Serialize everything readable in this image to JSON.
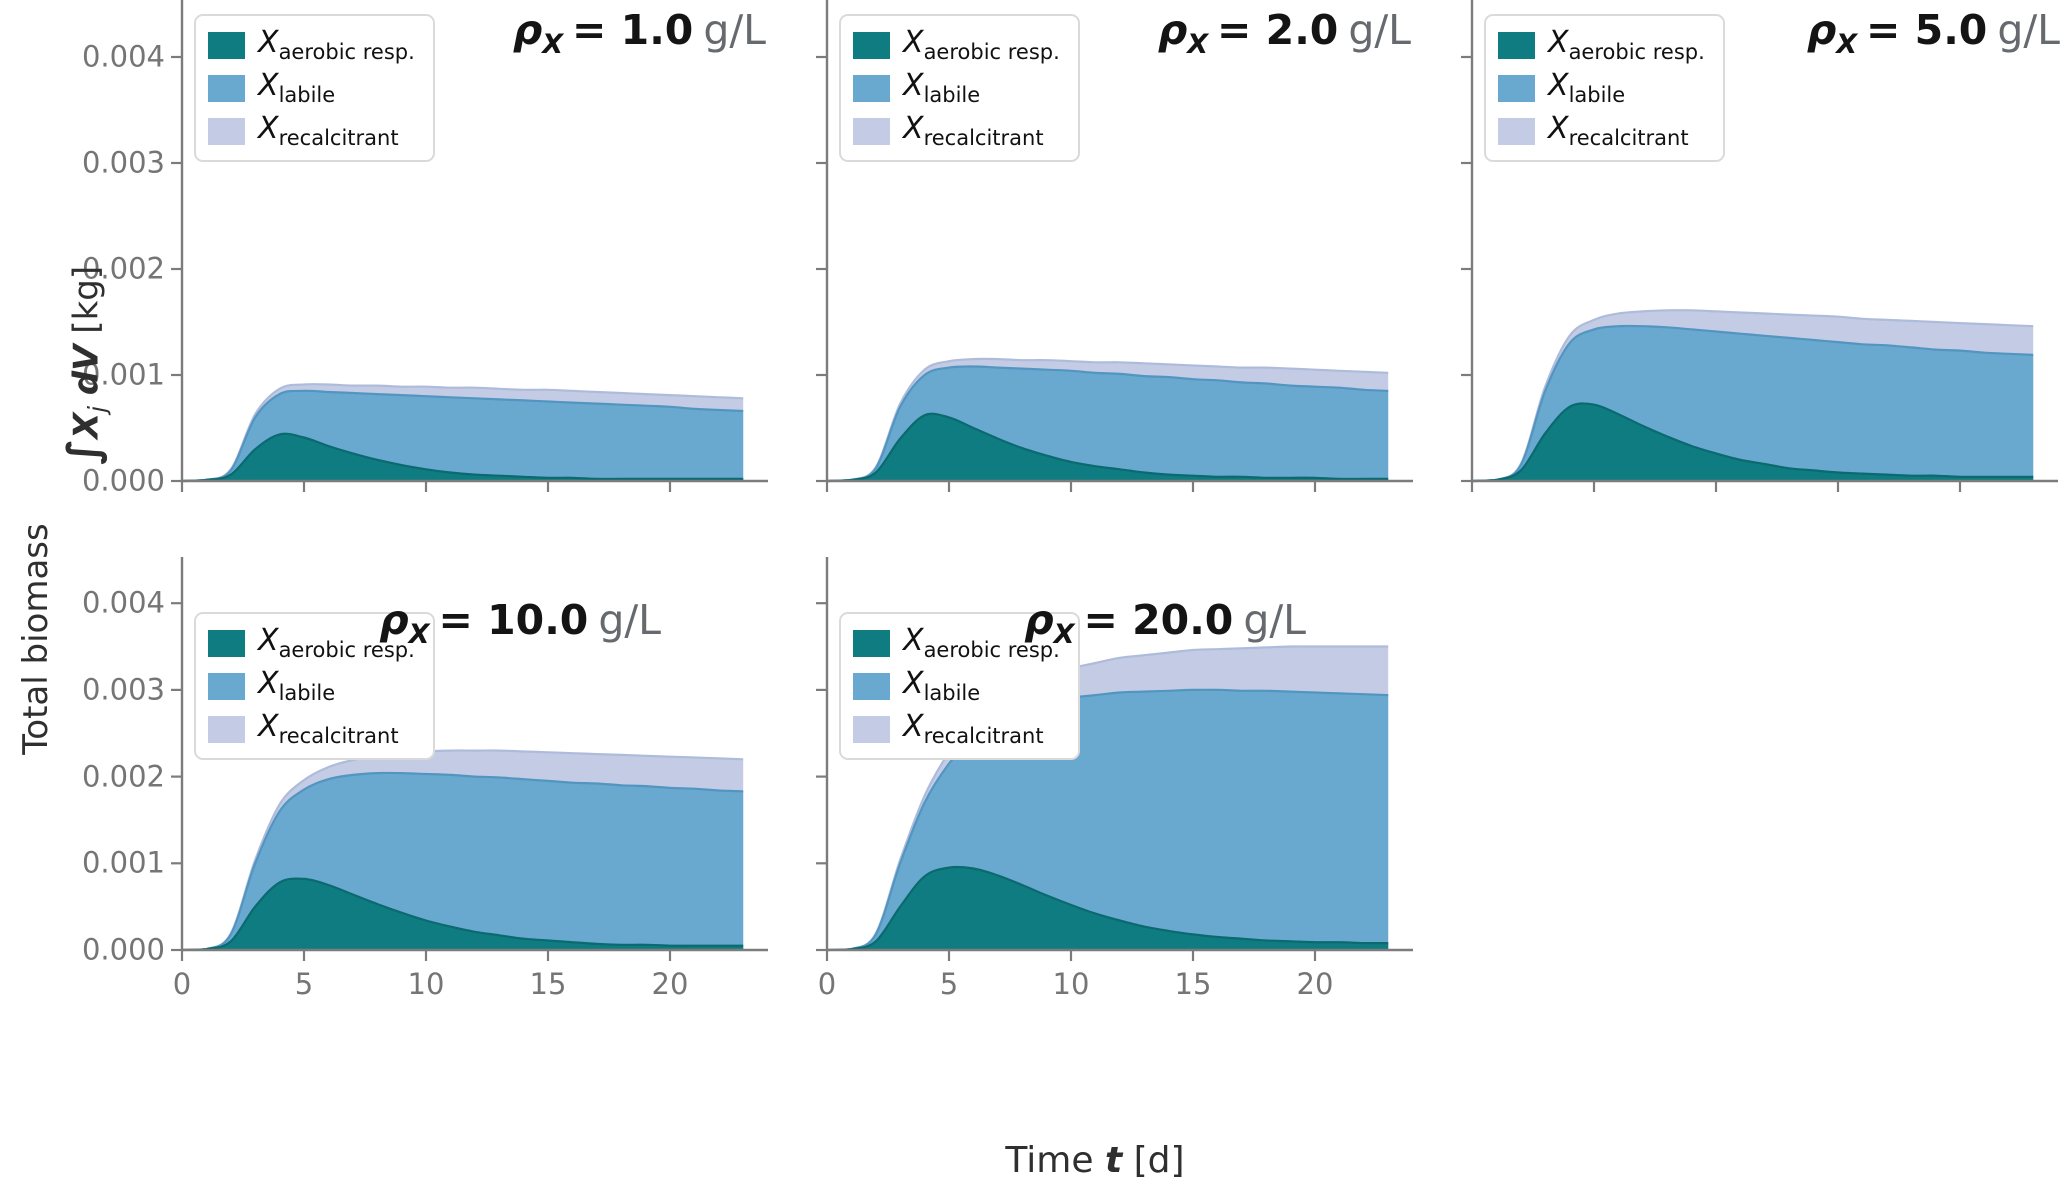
{
  "figure": {
    "xlabel": {
      "pre": "Time",
      "var": "t",
      "post": "[d]"
    },
    "ylabel": {
      "line1": "Total biomass",
      "line2_integral": "∫",
      "line2_var": "X",
      "line2_sub": "j",
      "line2_dv": "dV",
      "line2_unit": "[kg]"
    }
  },
  "colors": {
    "aerobic_fill": "#0e7c80",
    "aerobic_edge": "#0a6a70",
    "labile_fill": "#69a9d0",
    "labile_edge": "#5295c0",
    "recalcitrant_fill": "#c3cce4",
    "recalcitrant_edge": "#aebbdb",
    "axis": "#7c7c7c",
    "tick_label": "#757575"
  },
  "legend": {
    "items": [
      {
        "symbol": "X",
        "subscript": "aerobic resp."
      },
      {
        "symbol": "X",
        "subscript": "labile"
      },
      {
        "symbol": "X",
        "subscript": "recalcitrant"
      }
    ]
  },
  "axes": {
    "y_tick_labels": [
      "0.000",
      "0.001",
      "0.002",
      "0.003",
      "0.004"
    ],
    "y_tick_values": [
      0,
      0.001,
      0.002,
      0.003,
      0.004
    ],
    "x_tick_labels": [
      "0",
      "5",
      "10",
      "15",
      "20"
    ],
    "x_tick_values": [
      0,
      5,
      10,
      15,
      20
    ]
  },
  "panels": [
    {
      "title": {
        "symbol": "ρ",
        "subscript": "X",
        "eq": "= 1.0",
        "unit": "g/L"
      }
    },
    {
      "title": {
        "symbol": "ρ",
        "subscript": "X",
        "eq": "= 2.0",
        "unit": "g/L"
      }
    },
    {
      "title": {
        "symbol": "ρ",
        "subscript": "X",
        "eq": "= 5.0",
        "unit": "g/L"
      }
    },
    {
      "title": {
        "symbol": "ρ",
        "subscript": "X",
        "eq": "= 10.0",
        "unit": "g/L"
      }
    },
    {
      "title": {
        "symbol": "ρ",
        "subscript": "X",
        "eq": "= 20.0",
        "unit": "g/L"
      }
    }
  ],
  "chart_data": [
    {
      "type": "area",
      "stacked": true,
      "title": "ρ_X = 1.0 g/L",
      "xlabel": "Time t [d]",
      "ylabel": "Total biomass ∫X_j dV [kg]",
      "xlim": [
        0,
        24
      ],
      "ylim": [
        0,
        0.00453
      ],
      "x_ticks": [
        0,
        5,
        10,
        15,
        20
      ],
      "y_ticks": [
        0,
        0.001,
        0.002,
        0.003,
        0.004
      ],
      "legend_position": "upper left",
      "x": [
        0,
        1,
        2,
        3,
        4,
        5,
        6,
        7,
        8,
        9,
        10,
        11,
        12,
        13,
        14,
        15,
        16,
        17,
        18,
        19,
        20,
        21,
        22,
        23
      ],
      "series": [
        {
          "name": "X_aerobic resp.",
          "values": [
            0,
            1e-05,
            6e-05,
            0.0003,
            0.00044,
            0.00041,
            0.00033,
            0.00026,
            0.0002,
            0.00015,
            0.00011,
            8e-05,
            6e-05,
            5e-05,
            4e-05,
            3e-05,
            3e-05,
            2e-05,
            2e-05,
            2e-05,
            2e-05,
            2e-05,
            2e-05,
            2e-05
          ]
        },
        {
          "name": "X_labile",
          "values": [
            0,
            0,
            4e-05,
            0.0003,
            0.00038,
            0.00044,
            0.00051,
            0.00057,
            0.00062,
            0.00066,
            0.00069,
            0.00071,
            0.00072,
            0.00072,
            0.00072,
            0.00072,
            0.00071,
            0.00071,
            0.0007,
            0.00069,
            0.00068,
            0.00066,
            0.00065,
            0.00064
          ]
        },
        {
          "name": "X_recalcitrant",
          "values": [
            0,
            0,
            1e-05,
            3e-05,
            5e-05,
            6e-05,
            7e-05,
            7e-05,
            8e-05,
            8e-05,
            9e-05,
            9e-05,
            0.0001,
            0.0001,
            0.0001,
            0.00011,
            0.00011,
            0.00011,
            0.00011,
            0.00011,
            0.00011,
            0.00012,
            0.00012,
            0.00012
          ]
        }
      ]
    },
    {
      "type": "area",
      "stacked": true,
      "title": "ρ_X = 2.0 g/L",
      "xlabel": "Time t [d]",
      "ylabel": "Total biomass ∫X_j dV [kg]",
      "xlim": [
        0,
        24
      ],
      "ylim": [
        0,
        0.00453
      ],
      "x_ticks": [
        0,
        5,
        10,
        15,
        20
      ],
      "y_ticks": [
        0,
        0.001,
        0.002,
        0.003,
        0.004
      ],
      "legend_position": "upper left",
      "x": [
        0,
        1,
        2,
        3,
        4,
        5,
        6,
        7,
        8,
        9,
        10,
        11,
        12,
        13,
        14,
        15,
        16,
        17,
        18,
        19,
        20,
        21,
        22,
        23
      ],
      "series": [
        {
          "name": "X_aerobic resp.",
          "values": [
            0,
            1e-05,
            8e-05,
            0.0004,
            0.00062,
            0.0006,
            0.0005,
            0.0004,
            0.00031,
            0.00024,
            0.00018,
            0.00014,
            0.00011,
            8e-05,
            6e-05,
            5e-05,
            4e-05,
            4e-05,
            3e-05,
            3e-05,
            3e-05,
            2e-05,
            2e-05,
            2e-05
          ]
        },
        {
          "name": "X_labile",
          "values": [
            0,
            0,
            4e-05,
            0.0003,
            0.00038,
            0.00047,
            0.00058,
            0.00067,
            0.00075,
            0.00081,
            0.00086,
            0.00088,
            0.0009,
            0.00091,
            0.00092,
            0.00091,
            0.00091,
            0.00089,
            0.00089,
            0.00087,
            0.00086,
            0.00086,
            0.00084,
            0.00083
          ]
        },
        {
          "name": "X_recalcitrant",
          "values": [
            0,
            0,
            1e-05,
            3e-05,
            5e-05,
            6e-05,
            7e-05,
            8e-05,
            8e-05,
            9e-05,
            9e-05,
            0.0001,
            0.00011,
            0.00012,
            0.00012,
            0.00013,
            0.00013,
            0.00014,
            0.00015,
            0.00016,
            0.00016,
            0.00016,
            0.00017,
            0.00017
          ]
        }
      ]
    },
    {
      "type": "area",
      "stacked": true,
      "title": "ρ_X = 5.0 g/L",
      "xlabel": "Time t [d]",
      "ylabel": "Total biomass ∫X_j dV [kg]",
      "xlim": [
        0,
        24
      ],
      "ylim": [
        0,
        0.00453
      ],
      "x_ticks": [
        0,
        5,
        10,
        15,
        20
      ],
      "y_ticks": [
        0,
        0.001,
        0.002,
        0.003,
        0.004
      ],
      "legend_position": "upper left",
      "x": [
        0,
        1,
        2,
        3,
        4,
        5,
        6,
        7,
        8,
        9,
        10,
        11,
        12,
        13,
        14,
        15,
        16,
        17,
        18,
        19,
        20,
        21,
        22,
        23
      ],
      "series": [
        {
          "name": "X_aerobic resp.",
          "values": [
            0,
            1e-05,
            0.0001,
            0.00045,
            0.0007,
            0.00072,
            0.00063,
            0.00052,
            0.00042,
            0.00033,
            0.00026,
            0.0002,
            0.00016,
            0.00012,
            0.0001,
            8e-05,
            7e-05,
            6e-05,
            5e-05,
            5e-05,
            4e-05,
            4e-05,
            4e-05,
            4e-05
          ]
        },
        {
          "name": "X_labile",
          "values": [
            0,
            0,
            5e-05,
            0.0004,
            0.0006,
            0.00071,
            0.00083,
            0.00094,
            0.00103,
            0.0011,
            0.00115,
            0.00119,
            0.00121,
            0.00123,
            0.00123,
            0.00123,
            0.00122,
            0.00122,
            0.00121,
            0.00119,
            0.00119,
            0.00117,
            0.00116,
            0.00115
          ]
        },
        {
          "name": "X_recalcitrant",
          "values": [
            0,
            0,
            1e-05,
            4e-05,
            7e-05,
            9e-05,
            0.00012,
            0.00014,
            0.00016,
            0.00018,
            0.00019,
            0.0002,
            0.00021,
            0.00022,
            0.00023,
            0.00024,
            0.00024,
            0.00024,
            0.00025,
            0.00026,
            0.00026,
            0.00027,
            0.00027,
            0.00027
          ]
        }
      ]
    },
    {
      "type": "area",
      "stacked": true,
      "title": "ρ_X = 10.0 g/L",
      "xlabel": "Time t [d]",
      "ylabel": "Total biomass ∫X_j dV [kg]",
      "xlim": [
        0,
        24
      ],
      "ylim": [
        0,
        0.00453
      ],
      "x_ticks": [
        0,
        5,
        10,
        15,
        20
      ],
      "y_ticks": [
        0,
        0.001,
        0.002,
        0.003,
        0.004
      ],
      "legend_position": "upper left",
      "x": [
        0,
        1,
        2,
        3,
        4,
        5,
        6,
        7,
        8,
        9,
        10,
        11,
        12,
        13,
        14,
        15,
        16,
        17,
        18,
        19,
        20,
        21,
        22,
        23
      ],
      "series": [
        {
          "name": "X_aerobic resp.",
          "values": [
            0,
            1e-05,
            0.0001,
            0.0005,
            0.00078,
            0.00082,
            0.00075,
            0.00064,
            0.00053,
            0.00043,
            0.00034,
            0.00027,
            0.00021,
            0.00017,
            0.00013,
            0.00011,
            9e-05,
            7e-05,
            6e-05,
            6e-05,
            5e-05,
            5e-05,
            5e-05,
            5e-05
          ]
        },
        {
          "name": "X_labile",
          "values": [
            0,
            0,
            8e-05,
            0.0005,
            0.00082,
            0.00103,
            0.00122,
            0.00138,
            0.00151,
            0.00161,
            0.00169,
            0.00175,
            0.00179,
            0.00182,
            0.00184,
            0.00184,
            0.00184,
            0.00185,
            0.00184,
            0.00183,
            0.00182,
            0.00181,
            0.00179,
            0.00178
          ]
        },
        {
          "name": "X_recalcitrant",
          "values": [
            0,
            0,
            1e-05,
            4e-05,
            8e-05,
            0.00011,
            0.00014,
            0.00017,
            0.0002,
            0.00023,
            0.00026,
            0.00028,
            0.0003,
            0.00031,
            0.00032,
            0.00033,
            0.00034,
            0.00034,
            0.00035,
            0.00035,
            0.00036,
            0.00036,
            0.00037,
            0.00037
          ]
        }
      ]
    },
    {
      "type": "area",
      "stacked": true,
      "title": "ρ_X = 20.0 g/L",
      "xlabel": "Time t [d]",
      "ylabel": "Total biomass ∫X_j dV [kg]",
      "xlim": [
        0,
        24
      ],
      "ylim": [
        0,
        0.00453
      ],
      "x_ticks": [
        0,
        5,
        10,
        15,
        20
      ],
      "y_ticks": [
        0,
        0.001,
        0.002,
        0.003,
        0.004
      ],
      "legend_position": "upper left",
      "x": [
        0,
        1,
        2,
        3,
        4,
        5,
        6,
        7,
        8,
        9,
        10,
        11,
        12,
        13,
        14,
        15,
        16,
        17,
        18,
        19,
        20,
        21,
        22,
        23
      ],
      "series": [
        {
          "name": "X_aerobic resp.",
          "values": [
            0,
            1e-05,
            0.0001,
            0.0005,
            0.00085,
            0.00095,
            0.00094,
            0.00086,
            0.00075,
            0.00063,
            0.00052,
            0.00042,
            0.00034,
            0.00027,
            0.00022,
            0.00018,
            0.00015,
            0.00013,
            0.00011,
            0.0001,
            9e-05,
            9e-05,
            8e-05,
            8e-05
          ]
        },
        {
          "name": "X_labile",
          "values": [
            0,
            0,
            8e-05,
            0.0005,
            0.00085,
            0.0012,
            0.00151,
            0.00178,
            0.00202,
            0.00222,
            0.00239,
            0.00252,
            0.00263,
            0.00271,
            0.00277,
            0.00282,
            0.00285,
            0.00286,
            0.00288,
            0.00288,
            0.00288,
            0.00287,
            0.00287,
            0.00286
          ]
        },
        {
          "name": "X_recalcitrant",
          "values": [
            0,
            0,
            1e-05,
            4e-05,
            8e-05,
            0.00013,
            0.00018,
            0.00023,
            0.00027,
            0.00031,
            0.00034,
            0.00037,
            0.0004,
            0.00042,
            0.00044,
            0.00046,
            0.00047,
            0.00049,
            0.0005,
            0.00052,
            0.00053,
            0.00054,
            0.00055,
            0.00056
          ]
        }
      ]
    }
  ]
}
